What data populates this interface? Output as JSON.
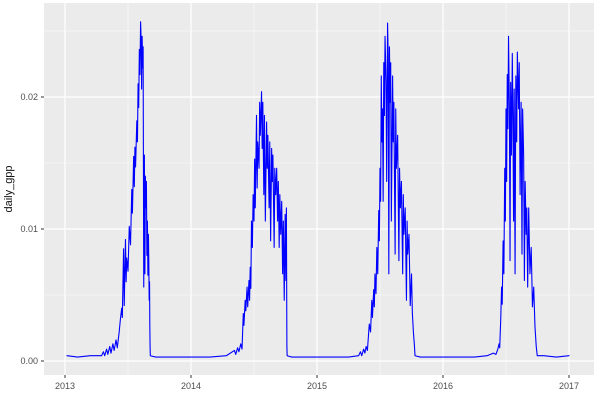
{
  "figure": {
    "panel_background": "#EBEBEB",
    "outer_background": "#FFFFFF",
    "grid_major_color": "#FFFFFF",
    "grid_minor_color": "#FFFFFF",
    "tick_mark_color": "#333333",
    "tick_label_color": "#4D4D4D",
    "axis_title_color": "#111111"
  },
  "chart_data": {
    "type": "line",
    "title": "",
    "xlabel": "",
    "ylabel": "daily_gpp",
    "legend": "none",
    "grid": "major+minor",
    "line_color": "#0000FF",
    "xlim": [
      2012.8333,
      2017.1984
    ],
    "ylim": [
      -0.00106,
      0.02712
    ],
    "x_ticks": {
      "values": [
        2013,
        2014,
        2015,
        2016,
        2017
      ],
      "labels": [
        "2013",
        "2014",
        "2015",
        "2016",
        "2017"
      ]
    },
    "y_ticks": {
      "values": [
        0,
        0.01,
        0.02
      ],
      "labels": [
        "0.00",
        "0.01",
        "0.02"
      ]
    },
    "x_minor": [
      2013.5,
      2014.5,
      2015.5,
      2016.5
    ],
    "y_minor": [
      0.005,
      0.015,
      0.025
    ],
    "series": [
      {
        "name": "daily_gpp",
        "color": "#0000FF",
        "points": [
          [
            2013.016,
            0.0004
          ],
          [
            2013.1,
            0.0003
          ],
          [
            2013.2,
            0.0004
          ],
          [
            2013.29,
            0.0004
          ],
          [
            2013.305,
            0.0007
          ],
          [
            2013.315,
            0.0004
          ],
          [
            2013.33,
            0.0009
          ],
          [
            2013.34,
            0.0005
          ],
          [
            2013.355,
            0.0011
          ],
          [
            2013.365,
            0.0006
          ],
          [
            2013.38,
            0.0013
          ],
          [
            2013.39,
            0.0008
          ],
          [
            2013.405,
            0.0016
          ],
          [
            2013.415,
            0.001
          ],
          [
            2013.43,
            0.0022
          ],
          [
            2013.44,
            0.0032
          ],
          [
            2013.45,
            0.004
          ],
          [
            2013.455,
            0.0033
          ],
          [
            2013.465,
            0.0085
          ],
          [
            2013.47,
            0.0042
          ],
          [
            2013.48,
            0.0092
          ],
          [
            2013.485,
            0.006
          ],
          [
            2013.49,
            0.0078
          ],
          [
            2013.5,
            0.0068
          ],
          [
            2013.51,
            0.0102
          ],
          [
            2013.52,
            0.0088
          ],
          [
            2013.53,
            0.013
          ],
          [
            2013.535,
            0.0112
          ],
          [
            2013.545,
            0.0155
          ],
          [
            2013.55,
            0.0132
          ],
          [
            2013.555,
            0.0162
          ],
          [
            2013.56,
            0.0147
          ],
          [
            2013.57,
            0.0182
          ],
          [
            2013.575,
            0.0166
          ],
          [
            2013.58,
            0.021
          ],
          [
            2013.585,
            0.0192
          ],
          [
            2013.59,
            0.0236
          ],
          [
            2013.595,
            0.0217
          ],
          [
            2013.6,
            0.0257
          ],
          [
            2013.605,
            0.0241
          ],
          [
            2013.608,
            0.0206
          ],
          [
            2013.612,
            0.0246
          ],
          [
            2013.617,
            0.0222
          ],
          [
            2013.62,
            0.0238
          ],
          [
            2013.625,
            0.0056
          ],
          [
            2013.63,
            0.0156
          ],
          [
            2013.634,
            0.0066
          ],
          [
            2013.638,
            0.014
          ],
          [
            2013.642,
            0.0116
          ],
          [
            2013.646,
            0.0136
          ],
          [
            2013.65,
            0.008
          ],
          [
            2013.654,
            0.0106
          ],
          [
            2013.658,
            0.0065
          ],
          [
            2013.662,
            0.0096
          ],
          [
            2013.665,
            0.0076
          ],
          [
            2013.668,
            0.0046
          ],
          [
            2013.671,
            0.006
          ],
          [
            2013.673,
            0.0028
          ],
          [
            2013.675,
            0.0012
          ],
          [
            2013.677,
            0.0004
          ],
          [
            2013.72,
            0.0003
          ],
          [
            2013.85,
            0.0003
          ],
          [
            2014.0,
            0.0003
          ],
          [
            2014.15,
            0.0003
          ],
          [
            2014.28,
            0.0004
          ],
          [
            2014.345,
            0.0008
          ],
          [
            2014.355,
            0.0005
          ],
          [
            2014.37,
            0.001
          ],
          [
            2014.38,
            0.0007
          ],
          [
            2014.395,
            0.0013
          ],
          [
            2014.405,
            0.0009
          ],
          [
            2014.415,
            0.0036
          ],
          [
            2014.42,
            0.0027
          ],
          [
            2014.43,
            0.0046
          ],
          [
            2014.435,
            0.0038
          ],
          [
            2014.445,
            0.0056
          ],
          [
            2014.45,
            0.0041
          ],
          [
            2014.46,
            0.0061
          ],
          [
            2014.465,
            0.0046
          ],
          [
            2014.47,
            0.0071
          ],
          [
            2014.475,
            0.0055
          ],
          [
            2014.48,
            0.0106
          ],
          [
            2014.487,
            0.0086
          ],
          [
            2014.493,
            0.0126
          ],
          [
            2014.5,
            0.0106
          ],
          [
            2014.505,
            0.0153
          ],
          [
            2014.51,
            0.0116
          ],
          [
            2014.52,
            0.0186
          ],
          [
            2014.525,
            0.0131
          ],
          [
            2014.53,
            0.0166
          ],
          [
            2014.54,
            0.0146
          ],
          [
            2014.545,
            0.0196
          ],
          [
            2014.55,
            0.0171
          ],
          [
            2014.56,
            0.0204
          ],
          [
            2014.565,
            0.0161
          ],
          [
            2014.57,
            0.0196
          ],
          [
            2014.578,
            0.0126
          ],
          [
            2014.583,
            0.0186
          ],
          [
            2014.59,
            0.0106
          ],
          [
            2014.6,
            0.0181
          ],
          [
            2014.605,
            0.0146
          ],
          [
            2014.61,
            0.0171
          ],
          [
            2014.62,
            0.0116
          ],
          [
            2014.625,
            0.0166
          ],
          [
            2014.632,
            0.0091
          ],
          [
            2014.64,
            0.0161
          ],
          [
            2014.645,
            0.0136
          ],
          [
            2014.65,
            0.0156
          ],
          [
            2014.66,
            0.0086
          ],
          [
            2014.665,
            0.0146
          ],
          [
            2014.672,
            0.0126
          ],
          [
            2014.68,
            0.0146
          ],
          [
            2014.687,
            0.0106
          ],
          [
            2014.693,
            0.0136
          ],
          [
            2014.7,
            0.0086
          ],
          [
            2014.705,
            0.0126
          ],
          [
            2014.712,
            0.0096
          ],
          [
            2014.72,
            0.0121
          ],
          [
            2014.727,
            0.0066
          ],
          [
            2014.733,
            0.0106
          ],
          [
            2014.74,
            0.0046
          ],
          [
            2014.747,
            0.0111
          ],
          [
            2014.753,
            0.0061
          ],
          [
            2014.757,
            0.0116
          ],
          [
            2014.761,
            0.0011
          ],
          [
            2014.763,
            0.0004
          ],
          [
            2014.8,
            0.0003
          ],
          [
            2014.95,
            0.0003
          ],
          [
            2015.1,
            0.0003
          ],
          [
            2015.25,
            0.0003
          ],
          [
            2015.33,
            0.0004
          ],
          [
            2015.345,
            0.0007
          ],
          [
            2015.355,
            0.0004
          ],
          [
            2015.37,
            0.0009
          ],
          [
            2015.38,
            0.0006
          ],
          [
            2015.39,
            0.0011
          ],
          [
            2015.4,
            0.0008
          ],
          [
            2015.415,
            0.0028
          ],
          [
            2015.425,
            0.0022
          ],
          [
            2015.435,
            0.0046
          ],
          [
            2015.44,
            0.0033
          ],
          [
            2015.45,
            0.0054
          ],
          [
            2015.455,
            0.0041
          ],
          [
            2015.46,
            0.0066
          ],
          [
            2015.468,
            0.0051
          ],
          [
            2015.475,
            0.0086
          ],
          [
            2015.482,
            0.0066
          ],
          [
            2015.49,
            0.0114
          ],
          [
            2015.495,
            0.0091
          ],
          [
            2015.5,
            0.0146
          ],
          [
            2015.505,
            0.0121
          ],
          [
            2015.51,
            0.0216
          ],
          [
            2015.515,
            0.0166
          ],
          [
            2015.52,
            0.0191
          ],
          [
            2015.525,
            0.0121
          ],
          [
            2015.53,
            0.0226
          ],
          [
            2015.535,
            0.0186
          ],
          [
            2015.54,
            0.0246
          ],
          [
            2015.548,
            0.0211
          ],
          [
            2015.553,
            0.0136
          ],
          [
            2015.56,
            0.0256
          ],
          [
            2015.565,
            0.0231
          ],
          [
            2015.57,
            0.0066
          ],
          [
            2015.575,
            0.0238
          ],
          [
            2015.58,
            0.0196
          ],
          [
            2015.585,
            0.0226
          ],
          [
            2015.59,
            0.0106
          ],
          [
            2015.6,
            0.0216
          ],
          [
            2015.605,
            0.0166
          ],
          [
            2015.61,
            0.0196
          ],
          [
            2015.62,
            0.0081
          ],
          [
            2015.625,
            0.0191
          ],
          [
            2015.63,
            0.0146
          ],
          [
            2015.64,
            0.0171
          ],
          [
            2015.65,
            0.0076
          ],
          [
            2015.655,
            0.0146
          ],
          [
            2015.662,
            0.0116
          ],
          [
            2015.67,
            0.0136
          ],
          [
            2015.68,
            0.0066
          ],
          [
            2015.685,
            0.0126
          ],
          [
            2015.69,
            0.0096
          ],
          [
            2015.7,
            0.0116
          ],
          [
            2015.71,
            0.0046
          ],
          [
            2015.715,
            0.0106
          ],
          [
            2015.72,
            0.0081
          ],
          [
            2015.73,
            0.0096
          ],
          [
            2015.74,
            0.0042
          ],
          [
            2015.75,
            0.0066
          ],
          [
            2015.757,
            0.0036
          ],
          [
            2015.765,
            0.0022
          ],
          [
            2015.773,
            0.0012
          ],
          [
            2015.778,
            0.0004
          ],
          [
            2015.82,
            0.0003
          ],
          [
            2015.95,
            0.0003
          ],
          [
            2016.1,
            0.0003
          ],
          [
            2016.25,
            0.0003
          ],
          [
            2016.35,
            0.0004
          ],
          [
            2016.4,
            0.0006
          ],
          [
            2016.42,
            0.0005
          ],
          [
            2016.435,
            0.0009
          ],
          [
            2016.445,
            0.0013
          ],
          [
            2016.45,
            0.001
          ],
          [
            2016.458,
            0.0031
          ],
          [
            2016.465,
            0.0056
          ],
          [
            2016.47,
            0.0043
          ],
          [
            2016.477,
            0.0091
          ],
          [
            2016.483,
            0.0066
          ],
          [
            2016.49,
            0.0146
          ],
          [
            2016.495,
            0.0106
          ],
          [
            2016.5,
            0.0191
          ],
          [
            2016.505,
            0.0136
          ],
          [
            2016.51,
            0.0217
          ],
          [
            2016.515,
            0.0176
          ],
          [
            2016.52,
            0.0246
          ],
          [
            2016.527,
            0.0191
          ],
          [
            2016.532,
            0.0076
          ],
          [
            2016.537,
            0.0211
          ],
          [
            2016.543,
            0.0156
          ],
          [
            2016.55,
            0.0233
          ],
          [
            2016.555,
            0.0186
          ],
          [
            2016.56,
            0.0106
          ],
          [
            2016.565,
            0.0206
          ],
          [
            2016.572,
            0.0066
          ],
          [
            2016.578,
            0.0216
          ],
          [
            2016.585,
            0.0166
          ],
          [
            2016.59,
            0.0234
          ],
          [
            2016.6,
            0.0191
          ],
          [
            2016.605,
            0.0226
          ],
          [
            2016.612,
            0.0126
          ],
          [
            2016.62,
            0.0196
          ],
          [
            2016.627,
            0.0081
          ],
          [
            2016.632,
            0.0191
          ],
          [
            2016.64,
            0.0156
          ],
          [
            2016.646,
            0.0061
          ],
          [
            2016.652,
            0.0136
          ],
          [
            2016.66,
            0.0096
          ],
          [
            2016.665,
            0.0116
          ],
          [
            2016.672,
            0.0056
          ],
          [
            2016.68,
            0.0116
          ],
          [
            2016.69,
            0.0066
          ],
          [
            2016.7,
            0.0086
          ],
          [
            2016.71,
            0.0041
          ],
          [
            2016.72,
            0.0056
          ],
          [
            2016.73,
            0.0026
          ],
          [
            2016.74,
            0.0011
          ],
          [
            2016.748,
            0.0004
          ],
          [
            2016.8,
            0.0004
          ],
          [
            2016.9,
            0.0003
          ],
          [
            2017.0,
            0.0004
          ]
        ]
      }
    ]
  }
}
